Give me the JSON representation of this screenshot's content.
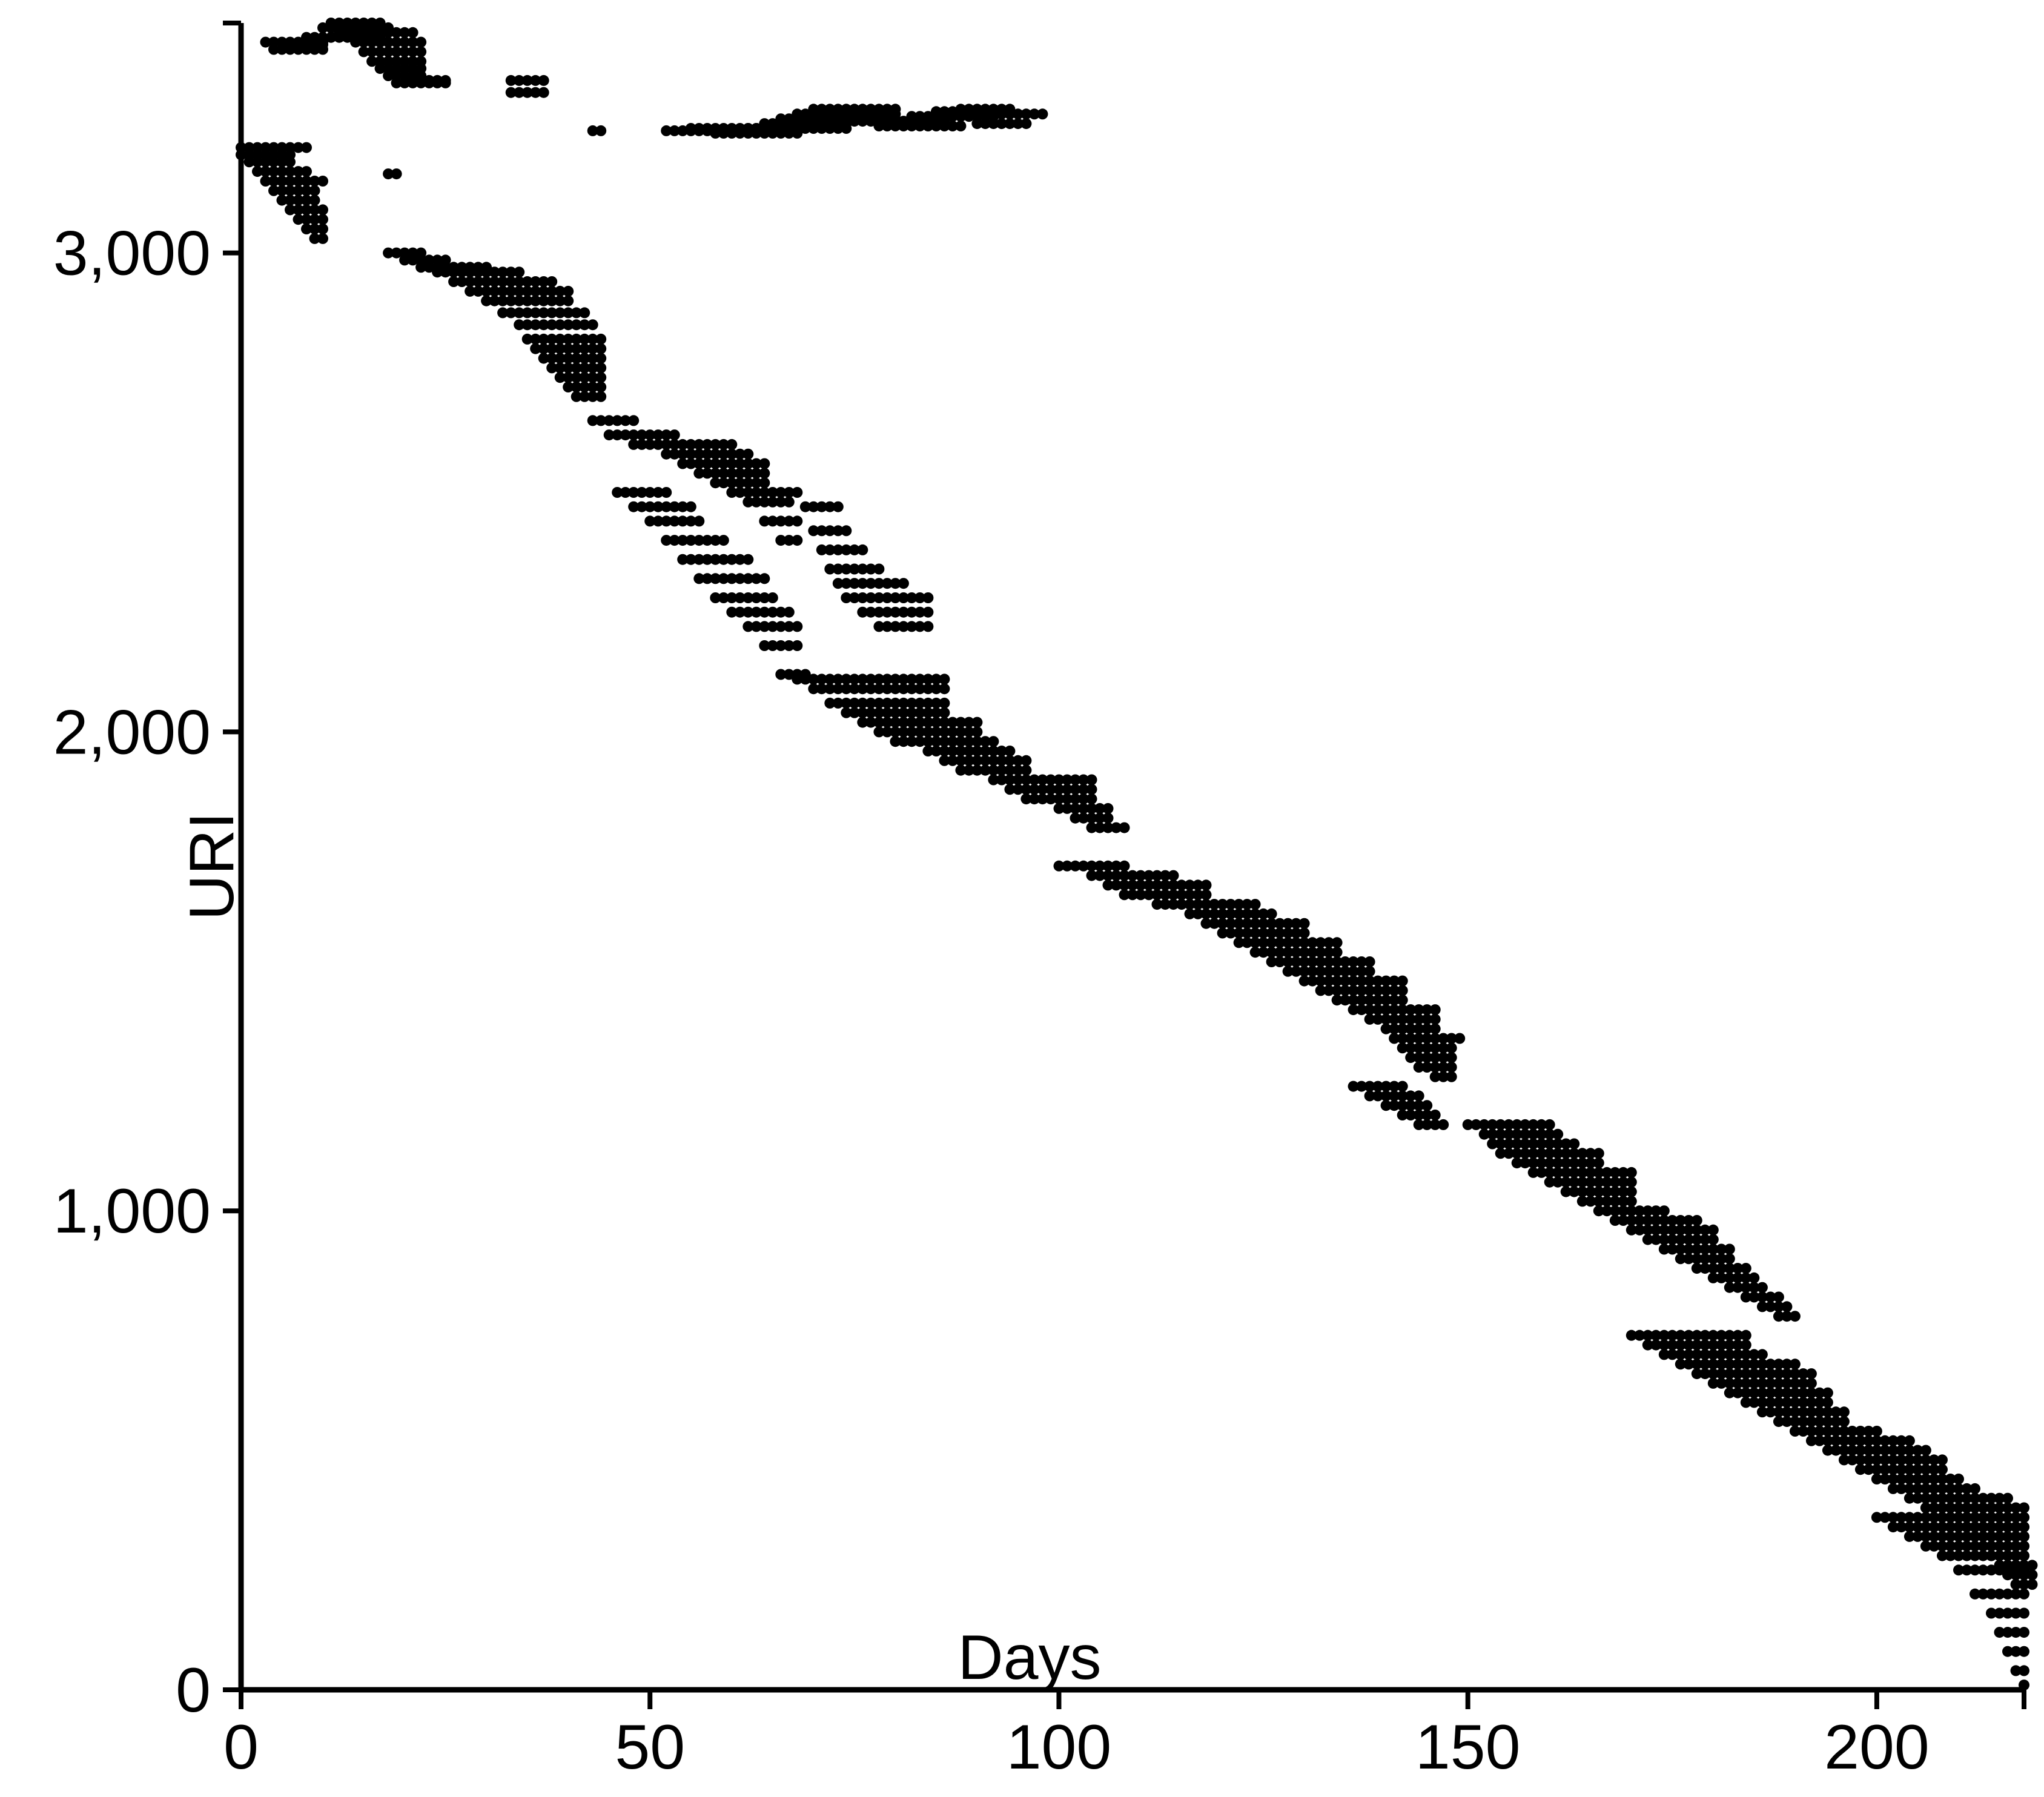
{
  "chart_data": {
    "type": "scatter",
    "title": "",
    "xlabel": "Days",
    "ylabel": "URI",
    "xlim": [
      0,
      218
    ],
    "ylim": [
      0,
      3480
    ],
    "xticks": [
      0,
      50,
      100,
      150,
      200
    ],
    "yticks": [
      0,
      1000,
      2000,
      3000
    ],
    "xtick_labels": [
      "0",
      "50",
      "100",
      "150",
      "200"
    ],
    "ytick_labels": [
      "0",
      "1,000",
      "2,000",
      "3,000"
    ],
    "grid": false,
    "legend": "none",
    "marker_color": "#000000",
    "series": [
      {
        "label": "",
        "description": "Each URI is a horizontal run of daily points from its first observed day to its last; the lower boundary of the cloud descends from about URI 3,000 at day 18 to about 0 at day 218.",
        "runs": [
          [
            0,
            3220,
            8
          ],
          [
            0,
            3205,
            6
          ],
          [
            1,
            3190,
            5
          ],
          [
            2,
            3170,
            6
          ],
          [
            3,
            3150,
            7
          ],
          [
            4,
            3130,
            5
          ],
          [
            5,
            3110,
            4
          ],
          [
            6,
            3090,
            4
          ],
          [
            7,
            3070,
            3
          ],
          [
            8,
            3050,
            2
          ],
          [
            9,
            3030,
            1
          ],
          [
            3,
            3440,
            7
          ],
          [
            4,
            3425,
            6
          ],
          [
            6,
            3435,
            4
          ],
          [
            8,
            3450,
            9
          ],
          [
            10,
            3470,
            8
          ],
          [
            11,
            3480,
            6
          ],
          [
            12,
            3460,
            9
          ],
          [
            14,
            3440,
            8
          ],
          [
            15,
            3420,
            7
          ],
          [
            16,
            3400,
            6
          ],
          [
            17,
            3385,
            5
          ],
          [
            18,
            3370,
            4
          ],
          [
            19,
            3355,
            6
          ],
          [
            21,
            3360,
            3
          ],
          [
            23,
            3360,
            2
          ],
          [
            33,
            3360,
            4
          ],
          [
            33,
            3335,
            4
          ],
          [
            43,
            3255,
            1
          ],
          [
            18,
            3165,
            1
          ],
          [
            52,
            3255,
            6
          ],
          [
            55,
            3260,
            8
          ],
          [
            58,
            3250,
            10
          ],
          [
            62,
            3260,
            12
          ],
          [
            64,
            3270,
            10
          ],
          [
            66,
            3280,
            14
          ],
          [
            68,
            3290,
            12
          ],
          [
            70,
            3300,
            10
          ],
          [
            74,
            3275,
            12
          ],
          [
            78,
            3265,
            10
          ],
          [
            82,
            3285,
            10
          ],
          [
            85,
            3295,
            8
          ],
          [
            88,
            3300,
            6
          ],
          [
            90,
            3270,
            6
          ],
          [
            93,
            3290,
            5
          ],
          [
            18,
            3000,
            4
          ],
          [
            20,
            2985,
            5
          ],
          [
            22,
            2970,
            8
          ],
          [
            24,
            2960,
            10
          ],
          [
            26,
            2940,
            12
          ],
          [
            28,
            2920,
            12
          ],
          [
            30,
            2900,
            10
          ],
          [
            32,
            2875,
            10
          ],
          [
            34,
            2850,
            9
          ],
          [
            35,
            2820,
            9
          ],
          [
            36,
            2800,
            8
          ],
          [
            37,
            2780,
            7
          ],
          [
            38,
            2760,
            6
          ],
          [
            39,
            2740,
            5
          ],
          [
            40,
            2720,
            4
          ],
          [
            41,
            2700,
            3
          ],
          [
            43,
            2650,
            5
          ],
          [
            45,
            2620,
            8
          ],
          [
            48,
            2600,
            12
          ],
          [
            52,
            2580,
            10
          ],
          [
            54,
            2560,
            10
          ],
          [
            56,
            2540,
            8
          ],
          [
            58,
            2520,
            6
          ],
          [
            60,
            2500,
            8
          ],
          [
            62,
            2480,
            5
          ],
          [
            64,
            2440,
            4
          ],
          [
            66,
            2400,
            2
          ],
          [
            69,
            2470,
            4
          ],
          [
            70,
            2420,
            4
          ],
          [
            71,
            2380,
            5
          ],
          [
            72,
            2340,
            6
          ],
          [
            73,
            2310,
            8
          ],
          [
            74,
            2280,
            10
          ],
          [
            76,
            2250,
            8
          ],
          [
            78,
            2220,
            6
          ],
          [
            46,
            2500,
            6
          ],
          [
            48,
            2470,
            7
          ],
          [
            50,
            2440,
            6
          ],
          [
            52,
            2400,
            7
          ],
          [
            54,
            2360,
            8
          ],
          [
            56,
            2320,
            8
          ],
          [
            58,
            2280,
            7
          ],
          [
            60,
            2250,
            7
          ],
          [
            62,
            2220,
            6
          ],
          [
            64,
            2180,
            4
          ],
          [
            66,
            2120,
            3
          ],
          [
            68,
            2110,
            18
          ],
          [
            70,
            2090,
            16
          ],
          [
            72,
            2060,
            14
          ],
          [
            74,
            2040,
            12
          ],
          [
            76,
            2020,
            14
          ],
          [
            78,
            2000,
            12
          ],
          [
            80,
            1980,
            12
          ],
          [
            84,
            1960,
            10
          ],
          [
            86,
            1940,
            10
          ],
          [
            88,
            1920,
            8
          ],
          [
            92,
            1900,
            12
          ],
          [
            94,
            1880,
            10
          ],
          [
            96,
            1860,
            8
          ],
          [
            100,
            1840,
            6
          ],
          [
            102,
            1820,
            4
          ],
          [
            104,
            1800,
            4
          ],
          [
            100,
            1720,
            8
          ],
          [
            104,
            1700,
            10
          ],
          [
            106,
            1680,
            12
          ],
          [
            108,
            1660,
            10
          ],
          [
            112,
            1640,
            12
          ],
          [
            116,
            1620,
            10
          ],
          [
            118,
            1600,
            12
          ],
          [
            120,
            1580,
            10
          ],
          [
            122,
            1560,
            12
          ],
          [
            124,
            1540,
            10
          ],
          [
            126,
            1520,
            12
          ],
          [
            128,
            1500,
            10
          ],
          [
            130,
            1480,
            12
          ],
          [
            132,
            1460,
            10
          ],
          [
            134,
            1440,
            8
          ],
          [
            136,
            1420,
            10
          ],
          [
            138,
            1400,
            8
          ],
          [
            140,
            1380,
            6
          ],
          [
            141,
            1360,
            8
          ],
          [
            142,
            1340,
            6
          ],
          [
            143,
            1320,
            5
          ],
          [
            144,
            1300,
            4
          ],
          [
            146,
            1280,
            2
          ],
          [
            136,
            1260,
            6
          ],
          [
            138,
            1240,
            6
          ],
          [
            140,
            1220,
            5
          ],
          [
            142,
            1200,
            4
          ],
          [
            144,
            1180,
            3
          ],
          [
            150,
            1180,
            10
          ],
          [
            152,
            1160,
            9
          ],
          [
            153,
            1140,
            10
          ],
          [
            154,
            1120,
            12
          ],
          [
            156,
            1100,
            10
          ],
          [
            158,
            1080,
            12
          ],
          [
            160,
            1060,
            10
          ],
          [
            162,
            1040,
            8
          ],
          [
            164,
            1020,
            6
          ],
          [
            166,
            1000,
            8
          ],
          [
            168,
            980,
            10
          ],
          [
            170,
            960,
            10
          ],
          [
            172,
            940,
            8
          ],
          [
            174,
            920,
            8
          ],
          [
            176,
            900,
            6
          ],
          [
            178,
            880,
            6
          ],
          [
            180,
            860,
            5
          ],
          [
            182,
            840,
            4
          ],
          [
            184,
            820,
            4
          ],
          [
            186,
            800,
            3
          ],
          [
            188,
            780,
            2
          ],
          [
            170,
            740,
            14
          ],
          [
            172,
            720,
            12
          ],
          [
            174,
            700,
            12
          ],
          [
            176,
            680,
            14
          ],
          [
            178,
            660,
            14
          ],
          [
            180,
            640,
            12
          ],
          [
            182,
            620,
            12
          ],
          [
            184,
            600,
            10
          ],
          [
            186,
            580,
            10
          ],
          [
            188,
            560,
            8
          ],
          [
            190,
            540,
            10
          ],
          [
            192,
            520,
            12
          ],
          [
            194,
            500,
            12
          ],
          [
            196,
            480,
            12
          ],
          [
            198,
            460,
            10
          ],
          [
            200,
            440,
            10
          ],
          [
            202,
            420,
            10
          ],
          [
            204,
            400,
            12
          ],
          [
            206,
            380,
            12
          ],
          [
            208,
            360,
            10
          ],
          [
            210,
            340,
            8
          ],
          [
            212,
            320,
            6
          ],
          [
            213,
            300,
            5
          ],
          [
            214,
            280,
            4
          ],
          [
            215,
            260,
            4
          ],
          [
            216,
            240,
            3
          ],
          [
            217,
            220,
            2
          ],
          [
            200,
            360,
            18
          ],
          [
            202,
            340,
            16
          ],
          [
            204,
            320,
            14
          ],
          [
            206,
            300,
            12
          ],
          [
            208,
            280,
            10
          ],
          [
            210,
            250,
            8
          ],
          [
            212,
            200,
            6
          ],
          [
            214,
            160,
            4
          ],
          [
            215,
            120,
            3
          ],
          [
            216,
            80,
            2
          ],
          [
            217,
            40,
            1
          ],
          [
            218,
            10,
            0
          ]
        ]
      }
    ]
  }
}
